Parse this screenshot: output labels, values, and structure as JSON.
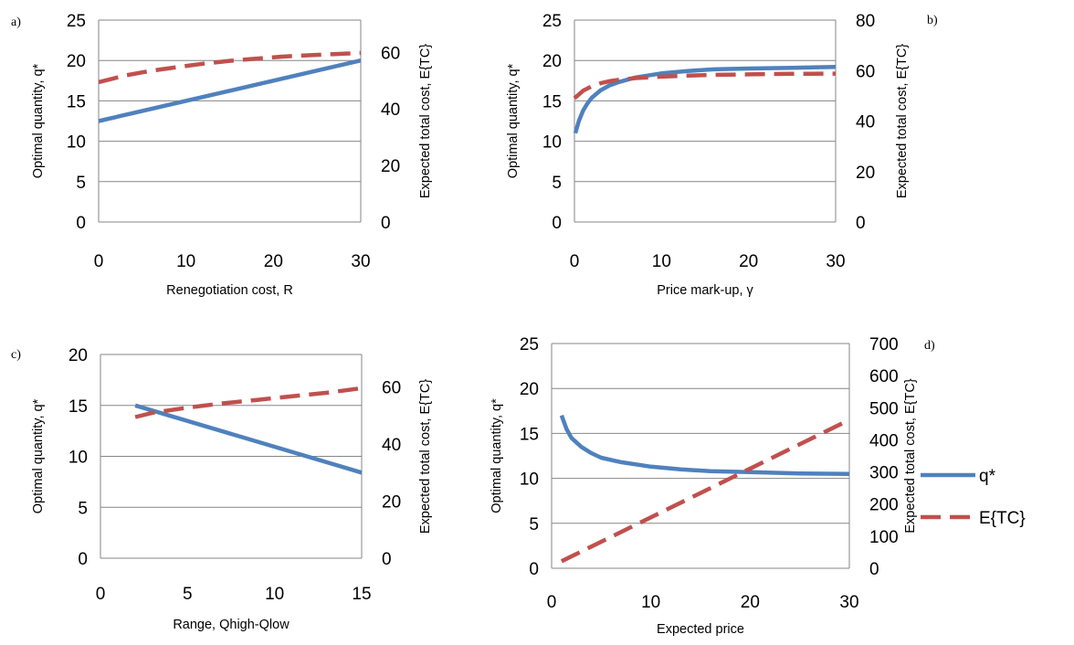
{
  "legend": [
    {
      "label": "q*",
      "color": "#4F81BD",
      "dash": "solid"
    },
    {
      "label": "E{TC}",
      "color": "#C0504D",
      "dash": "dashed"
    }
  ],
  "chart_data": [
    {
      "panel": "a)",
      "type": "line",
      "xlabel": "Renegotiation cost, R",
      "ylabel": "Optimal quantity, q*",
      "y2label": "Expected total cost, E{TC}",
      "xlim": [
        0,
        30
      ],
      "xticks": [
        0,
        10,
        20,
        30
      ],
      "ylim": [
        0,
        25
      ],
      "yticks": [
        0,
        5,
        10,
        15,
        20,
        25
      ],
      "y2lim": [
        0,
        71.43
      ],
      "y2ticks": [
        0,
        20,
        40,
        60
      ],
      "grid": true,
      "series": [
        {
          "name": "q*",
          "axis": "left",
          "x": [
            0,
            30
          ],
          "y": [
            12.5,
            20.0
          ]
        },
        {
          "name": "E{TC}",
          "axis": "right",
          "x": [
            0,
            3,
            6,
            9,
            12,
            15,
            18,
            21,
            24,
            27,
            30
          ],
          "y": [
            49.5,
            51.8,
            53.5,
            54.8,
            56.0,
            57.0,
            57.8,
            58.5,
            59.0,
            59.4,
            59.8
          ]
        }
      ]
    },
    {
      "panel": "b)",
      "type": "line",
      "xlabel": "Price mark-up, γ",
      "ylabel": "Optimal quantity, q*",
      "y2label": "Expected total cost, E{TC}",
      "xlim": [
        0,
        30
      ],
      "xticks": [
        0,
        10,
        20,
        30
      ],
      "ylim": [
        0,
        25
      ],
      "yticks": [
        0,
        5,
        10,
        15,
        20,
        25
      ],
      "y2lim": [
        0,
        80
      ],
      "y2ticks": [
        0,
        20,
        40,
        60,
        80
      ],
      "grid": true,
      "series": [
        {
          "name": "q*",
          "axis": "left",
          "x": [
            0.1,
            0.5,
            1,
            1.5,
            2,
            3,
            4,
            5,
            7,
            10,
            13,
            16,
            20,
            25,
            30
          ],
          "y": [
            11.0,
            12.5,
            13.8,
            14.7,
            15.4,
            16.3,
            16.9,
            17.3,
            17.9,
            18.4,
            18.7,
            18.9,
            19.0,
            19.1,
            19.2
          ]
        },
        {
          "name": "E{TC}",
          "axis": "right",
          "x": [
            0,
            1,
            2,
            3,
            4,
            5,
            7,
            10,
            13,
            16,
            20,
            25,
            30
          ],
          "y": [
            49.0,
            52.0,
            53.8,
            55.0,
            55.8,
            56.3,
            57.0,
            57.6,
            58.0,
            58.3,
            58.5,
            58.7,
            58.8
          ]
        }
      ]
    },
    {
      "panel": "c)",
      "type": "line",
      "xlabel": "Range, Qhigh-Qlow",
      "ylabel": "Optimal quantity, q*",
      "y2label": "Expected total cost, E{TC}",
      "xlim": [
        0,
        15
      ],
      "xticks": [
        0,
        5,
        10,
        15
      ],
      "ylim": [
        0,
        20
      ],
      "yticks": [
        0,
        5,
        10,
        15,
        20
      ],
      "y2lim": [
        0,
        71.43
      ],
      "y2ticks": [
        0,
        20,
        40,
        60
      ],
      "grid": true,
      "series": [
        {
          "name": "q*",
          "axis": "left",
          "x": [
            2,
            15
          ],
          "y": [
            15.0,
            8.4
          ]
        },
        {
          "name": "E{TC}",
          "axis": "right",
          "x": [
            2,
            3,
            5,
            7,
            9,
            11,
            13,
            15
          ],
          "y": [
            49.5,
            51.0,
            52.8,
            54.3,
            55.5,
            56.8,
            58.0,
            59.6
          ]
        }
      ]
    },
    {
      "panel": "d)",
      "type": "line",
      "xlabel": "Expected price",
      "ylabel": "Optimal quantity, q*",
      "y2label": "Expected total cost, E{TC}",
      "xlim": [
        0,
        30
      ],
      "xticks": [
        0,
        10,
        20,
        30
      ],
      "ylim": [
        0,
        25
      ],
      "yticks": [
        0,
        5,
        10,
        15,
        20,
        25
      ],
      "y2lim": [
        0,
        700
      ],
      "y2ticks": [
        0,
        100,
        200,
        300,
        400,
        500,
        600,
        700
      ],
      "grid": true,
      "series": [
        {
          "name": "q*",
          "axis": "left",
          "x": [
            1,
            1.5,
            2,
            3,
            4,
            5,
            7,
            10,
            13,
            16,
            20,
            25,
            30
          ],
          "y": [
            17.0,
            15.5,
            14.5,
            13.5,
            12.8,
            12.3,
            11.8,
            11.3,
            11.0,
            10.8,
            10.7,
            10.55,
            10.5
          ]
        },
        {
          "name": "E{TC}",
          "axis": "right",
          "x": [
            1,
            30
          ],
          "y": [
            22,
            462
          ]
        }
      ]
    }
  ]
}
